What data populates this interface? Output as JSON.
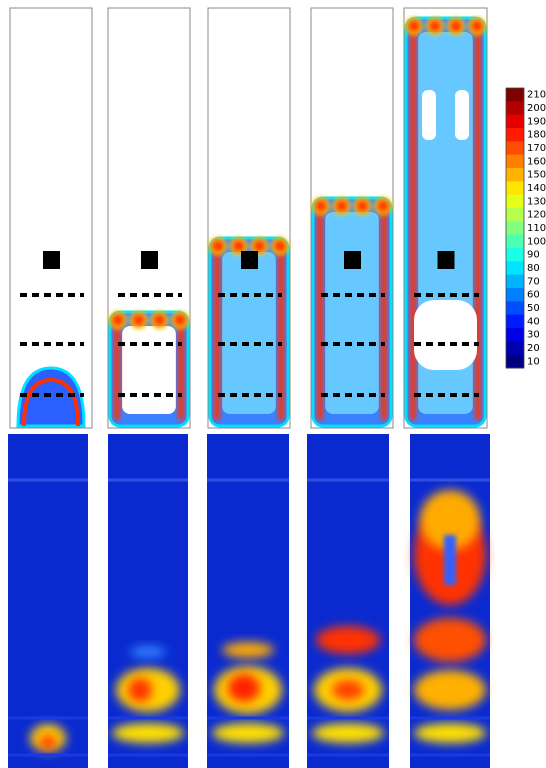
{
  "colorbar": {
    "ticks": [
      210,
      200,
      190,
      180,
      170,
      160,
      150,
      140,
      130,
      120,
      110,
      100,
      90,
      80,
      70,
      60,
      50,
      40,
      30,
      20,
      10
    ]
  }
}
